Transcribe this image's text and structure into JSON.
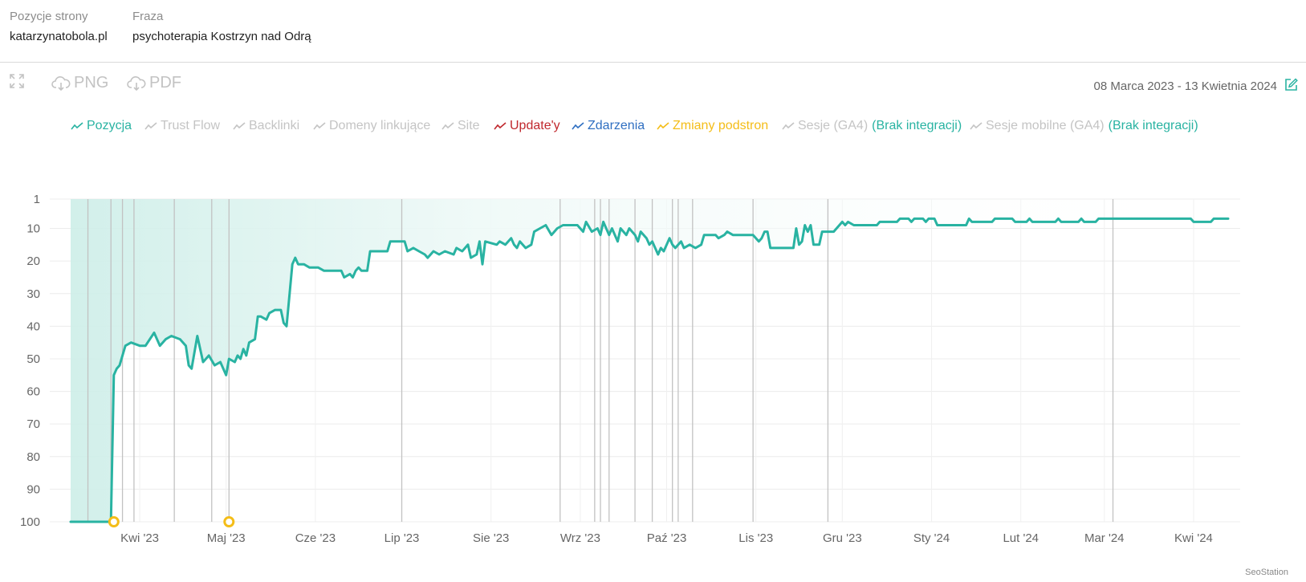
{
  "header": {
    "site_label": "Pozycje strony",
    "site_value": "katarzynatobola.pl",
    "phrase_label": "Fraza",
    "phrase_value": "psychoterapia Kostrzyn nad Odrą"
  },
  "toolbar": {
    "expand_icon": "expand-icon",
    "png_label": "PNG",
    "pdf_label": "PDF",
    "date_range": "08 Marca 2023 - 13 Kwietnia 2024",
    "edit_icon": "edit-icon"
  },
  "legend": [
    {
      "label": "Pozycja",
      "color": "#29b3a2",
      "active": true,
      "extra": ""
    },
    {
      "label": "Trust Flow",
      "color": "#c4c4c4",
      "active": false,
      "extra": ""
    },
    {
      "label": "Backlinki",
      "color": "#c4c4c4",
      "active": false,
      "extra": ""
    },
    {
      "label": "Domeny linkujące",
      "color": "#c4c4c4",
      "active": false,
      "extra": ""
    },
    {
      "label": "Site",
      "color": "#c4c4c4",
      "active": false,
      "extra": ""
    },
    {
      "label": "Update'y",
      "color": "#c0282d",
      "active": true,
      "extra": ""
    },
    {
      "label": "Zdarzenia",
      "color": "#2f6fc1",
      "active": true,
      "extra": ""
    },
    {
      "label": "Zmiany podstron",
      "color": "#f4bd18",
      "active": true,
      "extra": ""
    },
    {
      "label": "Sesje (GA4)",
      "color": "#c4c4c4",
      "active": false,
      "extra": "(Brak integracji)"
    },
    {
      "label": "Sesje mobilne (GA4)",
      "color": "#c4c4c4",
      "active": false,
      "extra": "(Brak integracji)"
    }
  ],
  "colors": {
    "series": "#29b3a2",
    "area_fill": "#e6f7f4",
    "marker": "#f4bd18",
    "event_line": "#c2c2c2",
    "grid": "#ececec"
  },
  "brand": "SeoStation",
  "chart_data": {
    "type": "line",
    "title": "",
    "xlabel": "",
    "ylabel": "",
    "y_inverted": true,
    "ylim": [
      1,
      100
    ],
    "y_ticks": [
      1,
      10,
      20,
      30,
      40,
      50,
      60,
      70,
      80,
      90,
      100
    ],
    "x_range": [
      "2023-03-08",
      "2024-04-13"
    ],
    "x_ticks": [
      {
        "date": "2023-04-01",
        "label": "Kwi '23"
      },
      {
        "date": "2023-05-01",
        "label": "Maj '23"
      },
      {
        "date": "2023-06-01",
        "label": "Cze '23"
      },
      {
        "date": "2023-07-01",
        "label": "Lip '23"
      },
      {
        "date": "2023-08-01",
        "label": "Sie '23"
      },
      {
        "date": "2023-09-01",
        "label": "Wrz '23"
      },
      {
        "date": "2023-10-01",
        "label": "Paź '23"
      },
      {
        "date": "2023-11-01",
        "label": "Lis '23"
      },
      {
        "date": "2023-12-01",
        "label": "Gru '23"
      },
      {
        "date": "2024-01-01",
        "label": "Sty '24"
      },
      {
        "date": "2024-02-01",
        "label": "Lut '24"
      },
      {
        "date": "2024-03-01",
        "label": "Mar '24"
      },
      {
        "date": "2024-04-01",
        "label": "Kwi '24"
      }
    ],
    "series": [
      {
        "points": [
          [
            "2023-03-08",
            100
          ],
          [
            "2023-03-22",
            100
          ],
          [
            "2023-03-23",
            55
          ],
          [
            "2023-03-24",
            53
          ],
          [
            "2023-03-25",
            52
          ],
          [
            "2023-03-27",
            46
          ],
          [
            "2023-03-29",
            45
          ],
          [
            "2023-04-01",
            46
          ],
          [
            "2023-04-03",
            46
          ],
          [
            "2023-04-06",
            42
          ],
          [
            "2023-04-08",
            46
          ],
          [
            "2023-04-10",
            44
          ],
          [
            "2023-04-12",
            43
          ],
          [
            "2023-04-15",
            44
          ],
          [
            "2023-04-17",
            46
          ],
          [
            "2023-04-18",
            52
          ],
          [
            "2023-04-19",
            53
          ],
          [
            "2023-04-21",
            43
          ],
          [
            "2023-04-23",
            51
          ],
          [
            "2023-04-25",
            49
          ],
          [
            "2023-04-27",
            52
          ],
          [
            "2023-04-29",
            51
          ],
          [
            "2023-05-01",
            55
          ],
          [
            "2023-05-02",
            50
          ],
          [
            "2023-05-04",
            51
          ],
          [
            "2023-05-05",
            49
          ],
          [
            "2023-05-06",
            50
          ],
          [
            "2023-05-07",
            47
          ],
          [
            "2023-05-08",
            49
          ],
          [
            "2023-05-09",
            45
          ],
          [
            "2023-05-11",
            44
          ],
          [
            "2023-05-12",
            37
          ],
          [
            "2023-05-13",
            37
          ],
          [
            "2023-05-15",
            38
          ],
          [
            "2023-05-16",
            36
          ],
          [
            "2023-05-18",
            35
          ],
          [
            "2023-05-20",
            35
          ],
          [
            "2023-05-21",
            39
          ],
          [
            "2023-05-22",
            40
          ],
          [
            "2023-05-24",
            21
          ],
          [
            "2023-05-25",
            19
          ],
          [
            "2023-05-26",
            21
          ],
          [
            "2023-05-28",
            21
          ],
          [
            "2023-05-30",
            22
          ],
          [
            "2023-06-02",
            22
          ],
          [
            "2023-06-04",
            23
          ],
          [
            "2023-06-07",
            23
          ],
          [
            "2023-06-10",
            23
          ],
          [
            "2023-06-11",
            25
          ],
          [
            "2023-06-13",
            24
          ],
          [
            "2023-06-14",
            25
          ],
          [
            "2023-06-15",
            23
          ],
          [
            "2023-06-16",
            22
          ],
          [
            "2023-06-17",
            23
          ],
          [
            "2023-06-19",
            23
          ],
          [
            "2023-06-20",
            17
          ],
          [
            "2023-06-23",
            17
          ],
          [
            "2023-06-26",
            17
          ],
          [
            "2023-06-27",
            14
          ],
          [
            "2023-07-02",
            14
          ],
          [
            "2023-07-03",
            17
          ],
          [
            "2023-07-05",
            16
          ],
          [
            "2023-07-07",
            17
          ],
          [
            "2023-07-09",
            18
          ],
          [
            "2023-07-10",
            19
          ],
          [
            "2023-07-12",
            17
          ],
          [
            "2023-07-14",
            18
          ],
          [
            "2023-07-16",
            17
          ],
          [
            "2023-07-19",
            18
          ],
          [
            "2023-07-20",
            16
          ],
          [
            "2023-07-22",
            17
          ],
          [
            "2023-07-24",
            15
          ],
          [
            "2023-07-25",
            19
          ],
          [
            "2023-07-27",
            18
          ],
          [
            "2023-07-28",
            14
          ],
          [
            "2023-07-29",
            21
          ],
          [
            "2023-07-30",
            14
          ],
          [
            "2023-08-03",
            15
          ],
          [
            "2023-08-04",
            14
          ],
          [
            "2023-08-06",
            15
          ],
          [
            "2023-08-08",
            13
          ],
          [
            "2023-08-09",
            15
          ],
          [
            "2023-08-10",
            16
          ],
          [
            "2023-08-11",
            14
          ],
          [
            "2023-08-13",
            16
          ],
          [
            "2023-08-15",
            15
          ],
          [
            "2023-08-16",
            11
          ],
          [
            "2023-08-18",
            10
          ],
          [
            "2023-08-20",
            9
          ],
          [
            "2023-08-22",
            12
          ],
          [
            "2023-08-24",
            10
          ],
          [
            "2023-08-26",
            9
          ],
          [
            "2023-08-28",
            9
          ],
          [
            "2023-08-31",
            9
          ],
          [
            "2023-09-02",
            11
          ],
          [
            "2023-09-03",
            8
          ],
          [
            "2023-09-05",
            11
          ],
          [
            "2023-09-07",
            10
          ],
          [
            "2023-09-08",
            12
          ],
          [
            "2023-09-09",
            8
          ],
          [
            "2023-09-11",
            12
          ],
          [
            "2023-09-12",
            10
          ],
          [
            "2023-09-14",
            14
          ],
          [
            "2023-09-15",
            10
          ],
          [
            "2023-09-17",
            12
          ],
          [
            "2023-09-18",
            10
          ],
          [
            "2023-09-20",
            12
          ],
          [
            "2023-09-21",
            14
          ],
          [
            "2023-09-22",
            11
          ],
          [
            "2023-09-24",
            13
          ],
          [
            "2023-09-25",
            15
          ],
          [
            "2023-09-26",
            14
          ],
          [
            "2023-09-28",
            18
          ],
          [
            "2023-09-29",
            16
          ],
          [
            "2023-09-30",
            17
          ],
          [
            "2023-10-02",
            13
          ],
          [
            "2023-10-03",
            15
          ],
          [
            "2023-10-04",
            16
          ],
          [
            "2023-10-06",
            14
          ],
          [
            "2023-10-07",
            16
          ],
          [
            "2023-10-09",
            15
          ],
          [
            "2023-10-11",
            16
          ],
          [
            "2023-10-13",
            15
          ],
          [
            "2023-10-14",
            12
          ],
          [
            "2023-10-16",
            12
          ],
          [
            "2023-10-18",
            12
          ],
          [
            "2023-10-19",
            13
          ],
          [
            "2023-10-21",
            12
          ],
          [
            "2023-10-22",
            11
          ],
          [
            "2023-10-24",
            12
          ],
          [
            "2023-10-31",
            12
          ],
          [
            "2023-11-02",
            14
          ],
          [
            "2023-11-03",
            13
          ],
          [
            "2023-11-04",
            11
          ],
          [
            "2023-11-05",
            11
          ],
          [
            "2023-11-06",
            16
          ],
          [
            "2023-11-14",
            16
          ],
          [
            "2023-11-15",
            10
          ],
          [
            "2023-11-16",
            15
          ],
          [
            "2023-11-17",
            14
          ],
          [
            "2023-11-18",
            9
          ],
          [
            "2023-11-19",
            11
          ],
          [
            "2023-11-20",
            9
          ],
          [
            "2023-11-21",
            15
          ],
          [
            "2023-11-23",
            15
          ],
          [
            "2023-11-24",
            11
          ],
          [
            "2023-11-28",
            11
          ],
          [
            "2023-11-29",
            10
          ],
          [
            "2023-11-30",
            9
          ],
          [
            "2023-12-01",
            8
          ],
          [
            "2023-12-02",
            9
          ],
          [
            "2023-12-03",
            8
          ],
          [
            "2023-12-05",
            9
          ],
          [
            "2023-12-13",
            9
          ],
          [
            "2023-12-14",
            8
          ],
          [
            "2023-12-20",
            8
          ],
          [
            "2023-12-21",
            7
          ],
          [
            "2023-12-24",
            7
          ],
          [
            "2023-12-25",
            8
          ],
          [
            "2023-12-26",
            7
          ],
          [
            "2023-12-29",
            7
          ],
          [
            "2023-12-30",
            8
          ],
          [
            "2023-12-31",
            7
          ],
          [
            "2024-01-02",
            7
          ],
          [
            "2024-01-03",
            9
          ],
          [
            "2024-01-13",
            9
          ],
          [
            "2024-01-14",
            7
          ],
          [
            "2024-01-15",
            8
          ],
          [
            "2024-01-22",
            8
          ],
          [
            "2024-01-23",
            7
          ],
          [
            "2024-01-29",
            7
          ],
          [
            "2024-01-30",
            8
          ],
          [
            "2024-02-03",
            8
          ],
          [
            "2024-02-04",
            7
          ],
          [
            "2024-02-05",
            8
          ],
          [
            "2024-02-13",
            8
          ],
          [
            "2024-02-14",
            7
          ],
          [
            "2024-02-15",
            8
          ],
          [
            "2024-02-21",
            8
          ],
          [
            "2024-02-22",
            7
          ],
          [
            "2024-02-23",
            8
          ],
          [
            "2024-02-27",
            8
          ],
          [
            "2024-02-28",
            7
          ],
          [
            "2024-03-31",
            7
          ],
          [
            "2024-04-01",
            8
          ],
          [
            "2024-04-07",
            8
          ],
          [
            "2024-04-08",
            7
          ],
          [
            "2024-04-13",
            7
          ]
        ]
      }
    ],
    "event_lines": [
      "2023-03-14",
      "2023-03-22",
      "2023-03-26",
      "2023-03-30",
      "2023-04-13",
      "2023-04-26",
      "2023-05-02",
      "2023-07-01",
      "2023-08-25",
      "2023-09-06",
      "2023-09-08",
      "2023-09-11",
      "2023-09-20",
      "2023-09-26",
      "2023-10-03",
      "2023-10-05",
      "2023-10-10",
      "2023-10-31",
      "2023-11-26",
      "2024-03-04"
    ],
    "change_markers": [
      "2023-03-23",
      "2023-05-02"
    ]
  }
}
